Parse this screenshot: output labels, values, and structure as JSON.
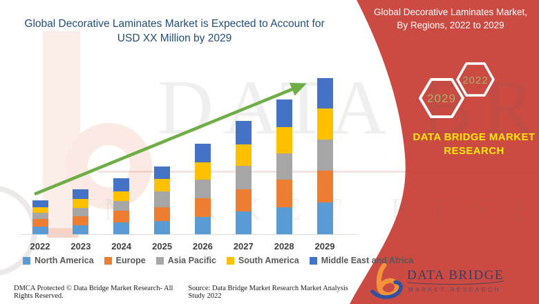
{
  "title": {
    "line1": "Global Decorative Laminates Market is Expected to Account for",
    "line2": "USD XX Million by 2029"
  },
  "right_panel": {
    "header_line1": "Global Decorative Laminates Market,",
    "header_line2": "By Regions, 2022 to 2029",
    "hexagon_back_label": "2029",
    "hexagon_front_label": "2022",
    "brand_line1": "DATA BRIDGE MARKET",
    "brand_line2": "RESEARCH",
    "logo_name": "DATA BRIDGE",
    "logo_subname": "MARKET RESEARCH"
  },
  "watermark": {
    "row1": "DATA BRIDGE",
    "row2": "MARKET RESEARCH"
  },
  "footer": {
    "left": "DMCA Protected © Data Bridge Market Research- All Rights Reserved.",
    "right": "Source: Data Bridge Market Research Market Analysis Study 2022"
  },
  "colors": {
    "band_red": "#CB4A41",
    "title_navy": "#1F4E79",
    "arrow_green": "#6FAD47",
    "brand_yellow": "#FFEB00",
    "hex_text_olive": "#A9AE6C"
  },
  "chart_data": {
    "type": "bar",
    "stacked": true,
    "title": "Global Decorative Laminates Market is Expected to Account for USD XX Million by 2029",
    "xlabel": "",
    "ylabel": "",
    "units": "relative market size (USD XX Million, unlabeled axis)",
    "grid": false,
    "legend_position": "bottom",
    "trend_arrow": true,
    "categories": [
      "2022",
      "2023",
      "2024",
      "2025",
      "2026",
      "2027",
      "2028",
      "2029"
    ],
    "series": [
      {
        "name": "North America",
        "color": "#5B9BD5",
        "values": [
          11,
          13,
          17,
          19,
          25,
          33,
          39,
          46
        ]
      },
      {
        "name": "Europe",
        "color": "#ED7D31",
        "values": [
          11,
          13,
          17,
          20,
          27,
          32,
          40,
          46
        ]
      },
      {
        "name": "Asia Pacific",
        "color": "#A6A6A6",
        "values": [
          9,
          12,
          14,
          23,
          27,
          34,
          38,
          45
        ]
      },
      {
        "name": "South America",
        "color": "#FFC000",
        "values": [
          8,
          13,
          14,
          18,
          25,
          31,
          38,
          45
        ]
      },
      {
        "name": "Middle East and Africa",
        "color": "#4472C4",
        "values": [
          10,
          14,
          19,
          18,
          27,
          34,
          40,
          44
        ]
      }
    ],
    "totals": [
      49,
      65,
      81,
      98,
      131,
      164,
      195,
      226
    ]
  }
}
